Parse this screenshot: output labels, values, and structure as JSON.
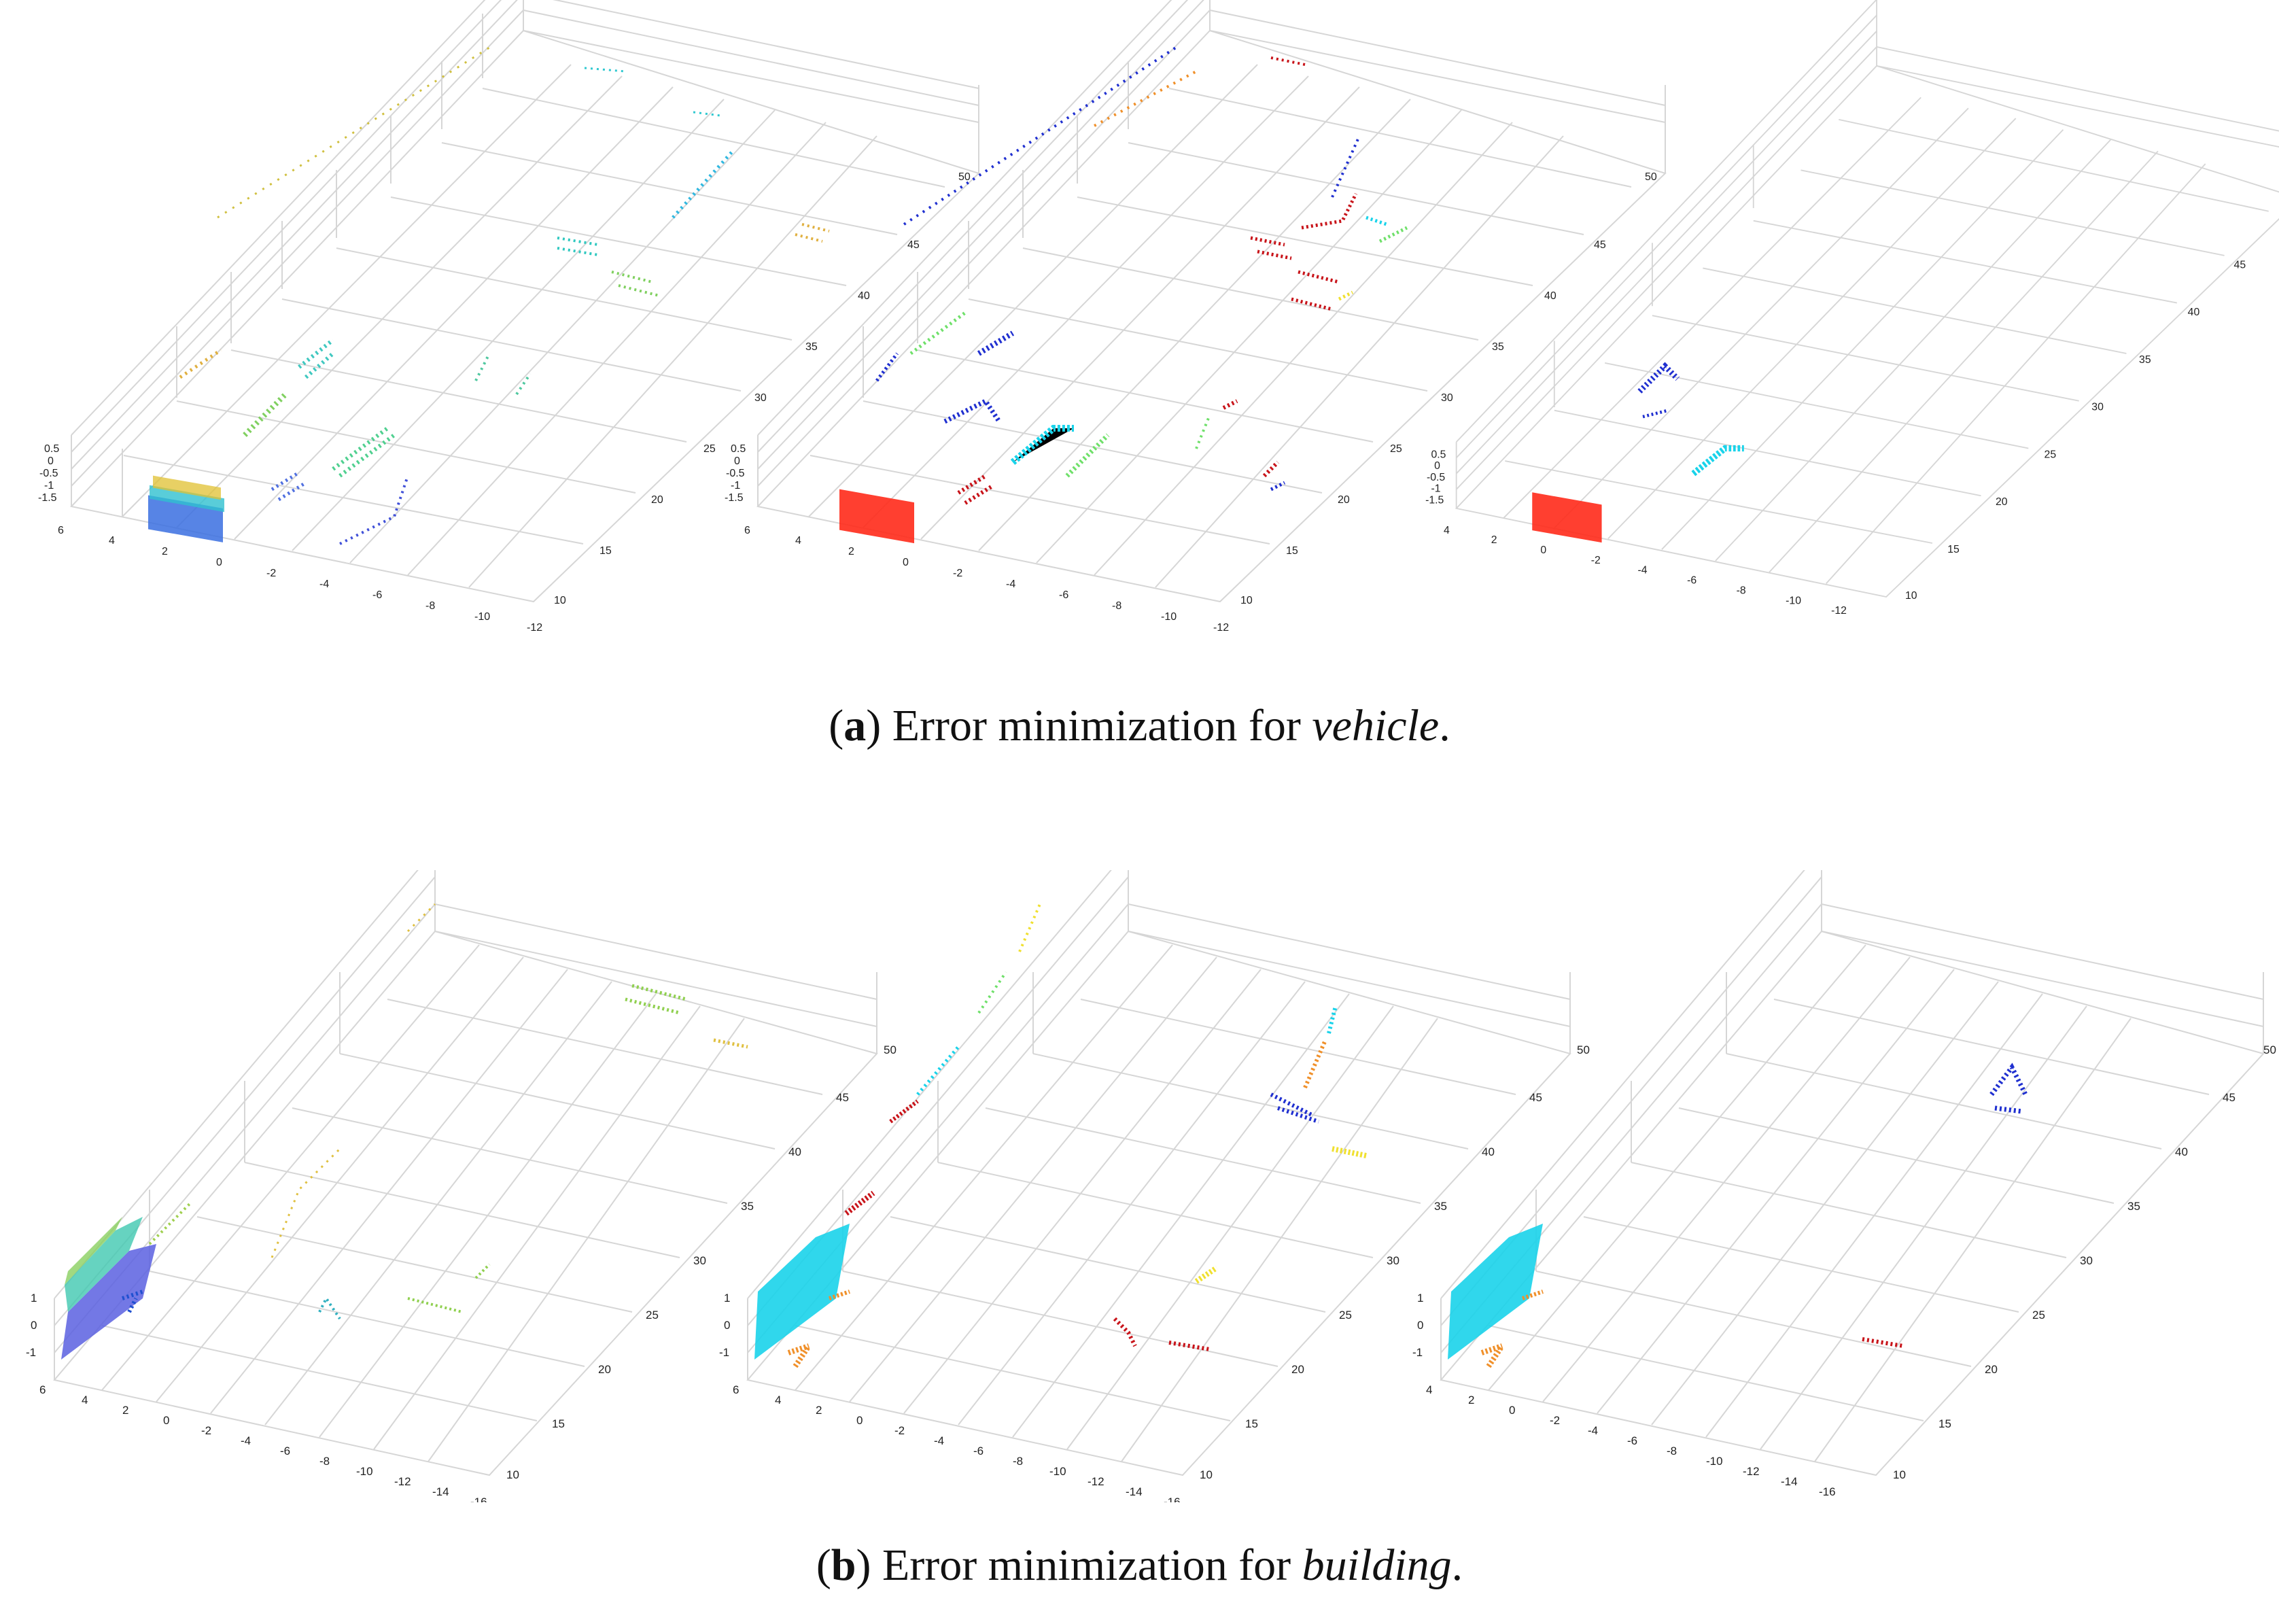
{
  "figure": {
    "panels": [
      {
        "id": "a",
        "caption": {
          "open": "(",
          "letter": "a",
          "close": ") Error minimization for ",
          "term": "vehicle",
          "end": "."
        },
        "z_ticks": [
          "0.5",
          "0",
          "-0.5",
          "-1",
          "-1.5"
        ],
        "x_ticks": [
          "6",
          "4",
          "2",
          "0",
          "-2",
          "-4",
          "-6",
          "-8",
          "-10",
          "-12"
        ],
        "y_ticks": [
          "10",
          "15",
          "20",
          "25",
          "30",
          "35",
          "40",
          "45",
          "50"
        ],
        "plots": [
          "all-points",
          "candidate-clusters",
          "selected-vehicles"
        ]
      },
      {
        "id": "b",
        "caption": {
          "open": "(",
          "letter": "b",
          "close": ") Error minimization for ",
          "term": "building",
          "end": "."
        },
        "z_ticks": [
          "1",
          "0",
          "-1"
        ],
        "x_ticks": [
          "6",
          "4",
          "2",
          "0",
          "-2",
          "-4",
          "-6",
          "-8",
          "-10",
          "-12",
          "-14",
          "-16"
        ],
        "y_ticks": [
          "10",
          "15",
          "20",
          "25",
          "30",
          "35",
          "40",
          "45",
          "50"
        ],
        "plots": [
          "all-points",
          "candidate-clusters",
          "selected-buildings"
        ]
      }
    ],
    "colors": {
      "red": "#ff2a1a",
      "dark_red": "#c8141a",
      "blue": "#2030d0",
      "cyan": "#19d3ea",
      "green": "#6fe06a",
      "yellow": "#f0e030",
      "orange": "#f0902a",
      "purple": "#6a50d8",
      "axes": "#d4d4d4"
    }
  }
}
